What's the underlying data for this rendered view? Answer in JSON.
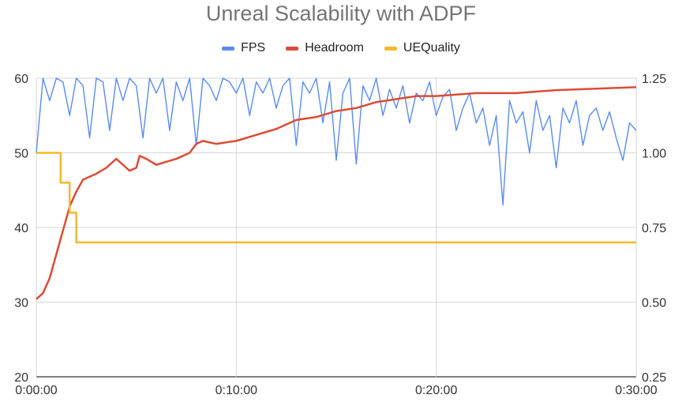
{
  "chart_data": {
    "type": "line",
    "title": "Unreal Scalability with ADPF",
    "legend_position": "top",
    "grid": true,
    "xlim": [
      "0:00:00",
      "0:30:00"
    ],
    "x_ticks": [
      "0:00:00",
      "0:10:00",
      "0:20:00",
      "0:30:00"
    ],
    "y_left": {
      "lim": [
        20,
        60
      ],
      "ticks": [
        "20",
        "30",
        "40",
        "50",
        "60"
      ]
    },
    "y_right": {
      "lim": [
        0.25,
        1.25
      ],
      "ticks": [
        "0.25",
        "0.50",
        "0.75",
        "1.00",
        "1.25"
      ]
    },
    "series": [
      {
        "name": "FPS",
        "axis": "left",
        "color": "#5a8bef",
        "points": [
          [
            "0:00:00",
            50
          ],
          [
            "0:00:20",
            60
          ],
          [
            "0:00:40",
            57
          ],
          [
            "0:01:00",
            60
          ],
          [
            "0:01:20",
            59.5
          ],
          [
            "0:01:40",
            55
          ],
          [
            "0:02:00",
            60
          ],
          [
            "0:02:20",
            59
          ],
          [
            "0:02:40",
            52
          ],
          [
            "0:03:00",
            60
          ],
          [
            "0:03:20",
            59.5
          ],
          [
            "0:03:40",
            53
          ],
          [
            "0:04:00",
            60
          ],
          [
            "0:04:20",
            57
          ],
          [
            "0:04:40",
            60
          ],
          [
            "0:05:00",
            59
          ],
          [
            "0:05:20",
            52
          ],
          [
            "0:05:40",
            60
          ],
          [
            "0:06:00",
            58
          ],
          [
            "0:06:20",
            60
          ],
          [
            "0:06:40",
            53
          ],
          [
            "0:07:00",
            59.5
          ],
          [
            "0:07:20",
            57
          ],
          [
            "0:07:40",
            60
          ],
          [
            "0:08:00",
            51
          ],
          [
            "0:08:20",
            60
          ],
          [
            "0:08:40",
            59
          ],
          [
            "0:09:00",
            57
          ],
          [
            "0:09:20",
            60
          ],
          [
            "0:09:40",
            59.5
          ],
          [
            "0:10:00",
            58
          ],
          [
            "0:10:20",
            60
          ],
          [
            "0:10:40",
            55
          ],
          [
            "0:11:00",
            59.5
          ],
          [
            "0:11:20",
            58
          ],
          [
            "0:11:40",
            60
          ],
          [
            "0:12:00",
            56
          ],
          [
            "0:12:20",
            59
          ],
          [
            "0:12:40",
            60
          ],
          [
            "0:13:00",
            51
          ],
          [
            "0:13:20",
            59.5
          ],
          [
            "0:13:40",
            58
          ],
          [
            "0:14:00",
            60
          ],
          [
            "0:14:20",
            54
          ],
          [
            "0:14:40",
            59.5
          ],
          [
            "0:15:00",
            49
          ],
          [
            "0:15:20",
            58
          ],
          [
            "0:15:40",
            60
          ],
          [
            "0:16:00",
            48.5
          ],
          [
            "0:16:20",
            59
          ],
          [
            "0:16:40",
            57
          ],
          [
            "0:17:00",
            60
          ],
          [
            "0:17:20",
            55
          ],
          [
            "0:17:40",
            58.5
          ],
          [
            "0:18:00",
            56
          ],
          [
            "0:18:20",
            59
          ],
          [
            "0:18:40",
            54
          ],
          [
            "0:19:00",
            58
          ],
          [
            "0:19:20",
            57
          ],
          [
            "0:19:40",
            59.5
          ],
          [
            "0:20:00",
            55
          ],
          [
            "0:20:20",
            57.5
          ],
          [
            "0:20:40",
            58.5
          ],
          [
            "0:21:00",
            53
          ],
          [
            "0:21:20",
            56
          ],
          [
            "0:21:40",
            58
          ],
          [
            "0:22:00",
            54
          ],
          [
            "0:22:20",
            56
          ],
          [
            "0:22:40",
            51
          ],
          [
            "0:23:00",
            55
          ],
          [
            "0:23:20",
            43
          ],
          [
            "0:23:40",
            57
          ],
          [
            "0:24:00",
            54
          ],
          [
            "0:24:20",
            55.5
          ],
          [
            "0:24:40",
            50
          ],
          [
            "0:25:00",
            57
          ],
          [
            "0:25:20",
            53
          ],
          [
            "0:25:40",
            55
          ],
          [
            "0:26:00",
            48
          ],
          [
            "0:26:20",
            56
          ],
          [
            "0:26:40",
            54
          ],
          [
            "0:27:00",
            57
          ],
          [
            "0:27:20",
            51
          ],
          [
            "0:27:40",
            55
          ],
          [
            "0:28:00",
            56
          ],
          [
            "0:28:20",
            53
          ],
          [
            "0:28:40",
            55.5
          ],
          [
            "0:29:00",
            52
          ],
          [
            "0:29:20",
            49
          ],
          [
            "0:29:40",
            54
          ],
          [
            "0:30:00",
            53
          ]
        ]
      },
      {
        "name": "Headroom",
        "axis": "right",
        "color": "#db4c36",
        "points": [
          [
            "0:00:00",
            0.51
          ],
          [
            "0:00:20",
            0.53
          ],
          [
            "0:00:40",
            0.58
          ],
          [
            "0:01:00",
            0.66
          ],
          [
            "0:01:20",
            0.74
          ],
          [
            "0:01:40",
            0.82
          ],
          [
            "0:02:00",
            0.87
          ],
          [
            "0:02:20",
            0.91
          ],
          [
            "0:02:40",
            0.92
          ],
          [
            "0:03:00",
            0.93
          ],
          [
            "0:03:30",
            0.95
          ],
          [
            "0:04:00",
            0.98
          ],
          [
            "0:04:20",
            0.96
          ],
          [
            "0:04:40",
            0.94
          ],
          [
            "0:05:00",
            0.95
          ],
          [
            "0:05:10",
            0.99
          ],
          [
            "0:05:30",
            0.98
          ],
          [
            "0:06:00",
            0.96
          ],
          [
            "0:06:30",
            0.97
          ],
          [
            "0:07:00",
            0.98
          ],
          [
            "0:07:40",
            1.0
          ],
          [
            "0:08:00",
            1.03
          ],
          [
            "0:08:20",
            1.04
          ],
          [
            "0:09:00",
            1.03
          ],
          [
            "0:10:00",
            1.04
          ],
          [
            "0:11:00",
            1.06
          ],
          [
            "0:12:00",
            1.08
          ],
          [
            "0:13:00",
            1.11
          ],
          [
            "0:14:00",
            1.12
          ],
          [
            "0:15:00",
            1.14
          ],
          [
            "0:16:00",
            1.15
          ],
          [
            "0:17:00",
            1.17
          ],
          [
            "0:18:00",
            1.18
          ],
          [
            "0:19:00",
            1.19
          ],
          [
            "0:20:00",
            1.19
          ],
          [
            "0:22:00",
            1.2
          ],
          [
            "0:24:00",
            1.2
          ],
          [
            "0:26:00",
            1.21
          ],
          [
            "0:28:00",
            1.215
          ],
          [
            "0:30:00",
            1.22
          ]
        ]
      },
      {
        "name": "UEQuality",
        "axis": "right",
        "color": "#f2b92b",
        "step": true,
        "points": [
          [
            "0:00:00",
            1.0
          ],
          [
            "0:01:13",
            0.9
          ],
          [
            "0:01:40",
            0.8
          ],
          [
            "0:02:00",
            0.7
          ],
          [
            "0:30:00",
            0.7
          ]
        ]
      }
    ]
  }
}
